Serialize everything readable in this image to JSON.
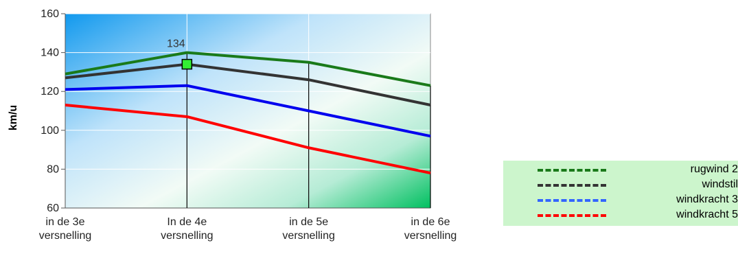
{
  "chart_data": {
    "type": "line",
    "categories": [
      [
        "in de 3e",
        "versnelling"
      ],
      [
        "In de 4e",
        "versnelling"
      ],
      [
        "in de 5e",
        "versnelling"
      ],
      [
        "in de 6e",
        "versnelling"
      ]
    ],
    "series": [
      {
        "name": "rugwind 2",
        "color": "#1a7a1a",
        "values": [
          129,
          140,
          135,
          123
        ]
      },
      {
        "name": "windstil",
        "color": "#333333",
        "values": [
          127,
          134,
          126,
          113
        ]
      },
      {
        "name": "windkracht 3",
        "color": "#0000ee",
        "values": [
          121,
          123,
          110,
          97
        ]
      },
      {
        "name": "windkracht 5",
        "color": "#ff0000",
        "values": [
          113,
          107,
          91,
          78
        ]
      }
    ],
    "highlight": {
      "series": 1,
      "index": 1,
      "label": "134",
      "marker_color": "#33ee33"
    },
    "ylabel": "km/u",
    "ylim": [
      60,
      160
    ],
    "yticks": [
      60,
      80,
      100,
      120,
      140,
      160
    ],
    "grid": true,
    "legend_position": "right",
    "legend_colors": [
      "#1a7a1a",
      "#333333",
      "#3366ff",
      "#ff0000"
    ]
  }
}
